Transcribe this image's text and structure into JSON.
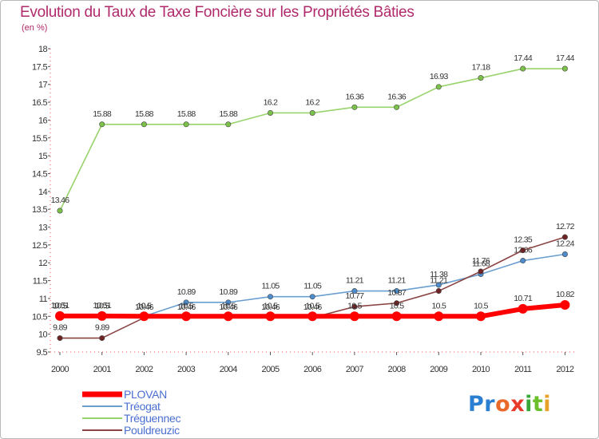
{
  "title": "Evolution du Taux de Taxe Foncière sur les Propriétés Bâties",
  "unit_label": "(en %)",
  "logo": {
    "chars": [
      "P",
      "r",
      "o",
      "x",
      "i",
      "t",
      "i"
    ],
    "colors": [
      "#2b7fd0",
      "#2b7fd0",
      "#e8692a",
      "#e83a2a",
      "#3aa838",
      "#6bbf2a",
      "#e8a22a"
    ]
  },
  "chart_data": {
    "type": "line",
    "x": [
      "2000",
      "2001",
      "2002",
      "2003",
      "2004",
      "2005",
      "2006",
      "2007",
      "2008",
      "2009",
      "2010",
      "2011",
      "2012"
    ],
    "ylim": [
      9.5,
      18
    ],
    "yticks": [
      "9.5",
      "10",
      "10.5",
      "11",
      "11.5",
      "12",
      "12.5",
      "13",
      "13.5",
      "14",
      "14.5",
      "15",
      "15.5",
      "16",
      "16.5",
      "17",
      "17.5",
      "18"
    ],
    "grid": false,
    "legend_position": "bottom-left",
    "series": [
      {
        "name": "Tréguennec",
        "color": "#98d36c",
        "point_color": "#7cc24a",
        "values": [
          13.46,
          15.88,
          15.88,
          15.88,
          15.88,
          16.2,
          16.2,
          16.36,
          16.36,
          16.93,
          17.18,
          17.44,
          17.44
        ],
        "labels": [
          "13.46",
          "15.88",
          "15.88",
          "15.88",
          "15.88",
          "16.2",
          "16.2",
          "16.36",
          "16.36",
          "16.93",
          "17.18",
          "17.44",
          "17.44"
        ]
      },
      {
        "name": "Tréogat",
        "color": "#6a9fd0",
        "point_color": "#4f8ccc",
        "values": [
          10.5,
          10.5,
          10.5,
          10.89,
          10.89,
          11.05,
          11.05,
          11.21,
          11.21,
          11.38,
          11.68,
          12.06,
          12.24
        ],
        "labels": [
          "10.5",
          "10.5",
          "10.5",
          "10.89",
          "10.89",
          "11.05",
          "11.05",
          "11.21",
          "11.21",
          "11.38",
          "11.68",
          "12.06",
          "12.24"
        ]
      },
      {
        "name": "Pouldreuzic",
        "color": "#8b4444",
        "point_color": "#6e2424",
        "values": [
          9.89,
          9.89,
          10.46,
          10.46,
          10.46,
          10.46,
          10.46,
          10.77,
          10.87,
          11.21,
          11.76,
          12.35,
          12.72
        ],
        "labels": [
          "9.89",
          "9.89",
          "10.46",
          "10.46",
          "10.46",
          "10.46",
          "10.46",
          "10.77",
          "10.87",
          "11.21",
          "11.76",
          "12.35",
          "12.72"
        ]
      },
      {
        "name": "PLOVAN",
        "color": "#ff0000",
        "point_color": "#ff0000",
        "values": [
          10.51,
          10.51,
          10.5,
          10.5,
          10.5,
          10.5,
          10.5,
          10.5,
          10.5,
          10.5,
          10.5,
          10.71,
          10.82
        ],
        "labels": [
          "10.51",
          "10.51",
          "10.5",
          "10.5",
          "10.5",
          "10.5",
          "10.5",
          "10.5",
          "10.5",
          "10.5",
          "10.5",
          "10.71",
          "10.82"
        ]
      }
    ],
    "legend": [
      {
        "name": "PLOVAN",
        "color": "#ff0000",
        "text_color": "#4a6fd0"
      },
      {
        "name": "Tréogat",
        "color": "#6a9fd0",
        "text_color": "#4a6fd0"
      },
      {
        "name": "Tréguennec",
        "color": "#98d36c",
        "text_color": "#4a6fd0"
      },
      {
        "name": "Pouldreuzic",
        "color": "#8b4444",
        "text_color": "#4a6fd0"
      }
    ]
  }
}
